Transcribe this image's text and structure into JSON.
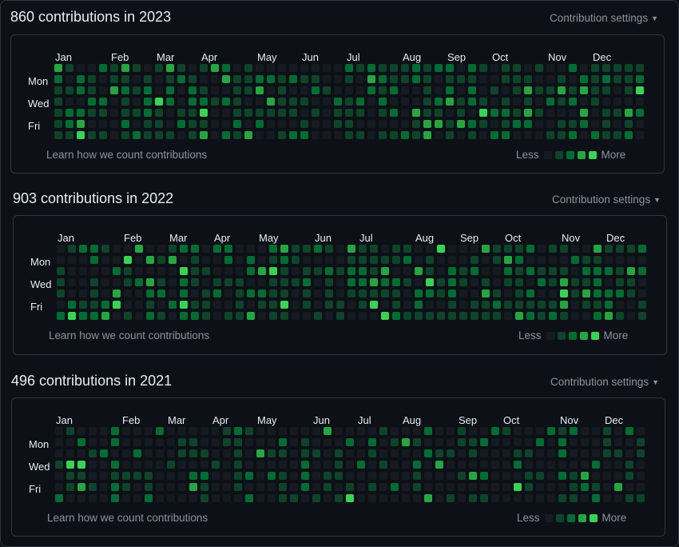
{
  "colors": {
    "level0": "#161b22",
    "level1": "#0e4429",
    "level2": "#006d32",
    "level3": "#26a641",
    "level4": "#39d353",
    "border": "#30363d",
    "muted": "#8b949e"
  },
  "day_labels": [
    "Mon",
    "Wed",
    "Fri"
  ],
  "learn_label": "Learn how we count contributions",
  "legend": {
    "less": "Less",
    "more": "More"
  },
  "settings_label": "Contribution settings",
  "years": [
    {
      "title": "860 contributions in 2023",
      "months": [
        "Jan",
        "Feb",
        "Mar",
        "Apr",
        "May",
        "Jun",
        "Jul",
        "Aug",
        "Sep",
        "Oct",
        "Nov",
        "Dec"
      ],
      "seed": 23
    },
    {
      "title": "903 contributions in 2022",
      "months": [
        "Jan",
        "Feb",
        "Mar",
        "Apr",
        "May",
        "Jun",
        "Jul",
        "Aug",
        "Sep",
        "Oct",
        "Nov",
        "Dec"
      ],
      "seed": 22
    },
    {
      "title": "496 contributions in 2021",
      "months": [
        "Jan",
        "Feb",
        "Mar",
        "Apr",
        "May",
        "Jun",
        "Jul",
        "Aug",
        "Sep",
        "Oct",
        "Nov",
        "Dec"
      ],
      "seed": 21
    }
  ]
}
